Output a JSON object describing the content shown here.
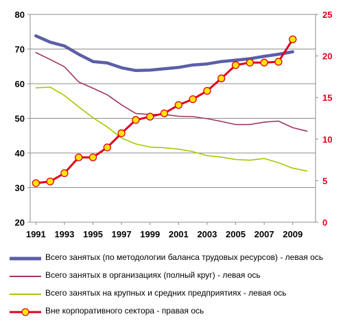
{
  "chart_data": {
    "type": "line",
    "x": [
      1991,
      1992,
      1993,
      1994,
      1995,
      1996,
      1997,
      1998,
      1999,
      2000,
      2001,
      2002,
      2003,
      2004,
      2005,
      2006,
      2007,
      2008,
      2009,
      2010
    ],
    "x_tick_labels": [
      "1991",
      "1993",
      "1995",
      "1997",
      "1999",
      "2001",
      "2003",
      "2005",
      "2007",
      "2009"
    ],
    "left_axis": {
      "ylim": [
        20,
        80
      ],
      "ticks": [
        "20",
        "30",
        "40",
        "50",
        "60",
        "70",
        "80"
      ]
    },
    "right_axis": {
      "ylim": [
        0,
        25
      ],
      "ticks": [
        "0",
        "5",
        "10",
        "15",
        "20",
        "25"
      ],
      "color": "#e0001b"
    },
    "grid": true,
    "legend_placement": "bottom",
    "series": [
      {
        "name": "Всего занятых (по методологии баланса трудовых ресурсов) - левая ось",
        "axis": "left",
        "color": "#5b5ea6",
        "x": [
          1991,
          1992,
          1993,
          1994,
          1995,
          1996,
          1997,
          1998,
          1999,
          2000,
          2001,
          2002,
          2003,
          2004,
          2005,
          2006,
          2007,
          2008,
          2009
        ],
        "values": [
          73.8,
          72.0,
          70.9,
          68.5,
          66.4,
          66.0,
          64.6,
          63.8,
          63.9,
          64.3,
          64.7,
          65.4,
          65.7,
          66.4,
          66.8,
          67.2,
          67.9,
          68.5,
          69.2
        ]
      },
      {
        "name": "Всего занятых в организациях (полный круг) - левая ось",
        "axis": "left",
        "color": "#9e3561",
        "x": [
          1991,
          1992,
          1993,
          1994,
          1995,
          1996,
          1997,
          1998,
          1999,
          2000,
          2001,
          2002,
          2003,
          2004,
          2005,
          2006,
          2007,
          2008,
          2009,
          2010
        ],
        "values": [
          69.0,
          67.0,
          64.9,
          60.5,
          58.7,
          56.8,
          53.9,
          51.4,
          51.1,
          51.1,
          50.6,
          50.5,
          49.9,
          49.1,
          48.2,
          48.2,
          48.9,
          49.2,
          47.3,
          46.3
        ]
      },
      {
        "name": "Всего занятых на крупных и средних предприятиях - левая ось",
        "axis": "left",
        "color": "#a6c800",
        "x": [
          1991,
          1992,
          1993,
          1994,
          1995,
          1996,
          1997,
          1998,
          1999,
          2000,
          2001,
          2002,
          2003,
          2004,
          2005,
          2006,
          2007,
          2008,
          2009,
          2010
        ],
        "values": [
          58.8,
          59.0,
          56.6,
          53.3,
          50.2,
          47.5,
          44.3,
          42.6,
          41.7,
          41.5,
          41.1,
          40.4,
          39.2,
          38.8,
          38.1,
          37.9,
          38.4,
          37.2,
          35.6,
          34.8
        ]
      },
      {
        "name": "Вне корпоративного сектора - правая  ось",
        "axis": "right",
        "color": "#e0001b",
        "marker_fill": "#ffe600",
        "x": [
          1991,
          1992,
          1993,
          1994,
          1995,
          1996,
          1997,
          1998,
          1999,
          2000,
          2001,
          2002,
          2003,
          2004,
          2005,
          2006,
          2007,
          2008,
          2009
        ],
        "values": [
          4.7,
          4.9,
          5.9,
          7.8,
          7.8,
          9.0,
          10.7,
          12.3,
          12.7,
          13.1,
          14.1,
          14.8,
          15.8,
          17.3,
          18.9,
          19.2,
          19.2,
          19.3,
          22.0
        ]
      }
    ]
  }
}
